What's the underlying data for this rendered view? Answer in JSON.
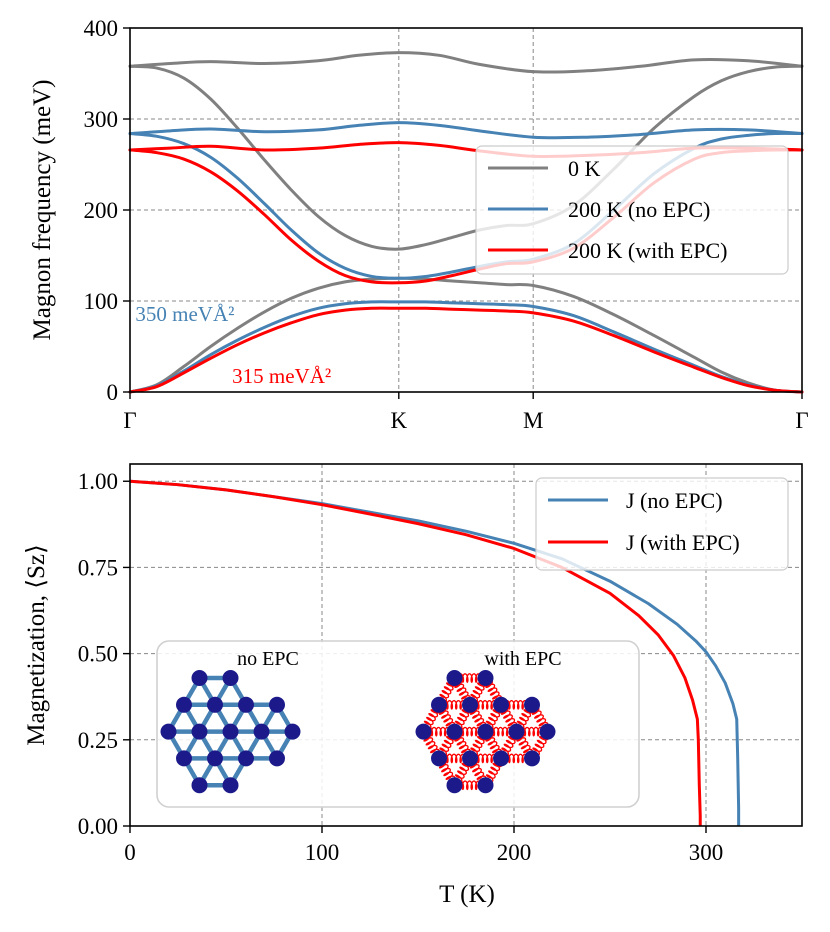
{
  "chart_data": [
    {
      "type": "line",
      "title": "",
      "ylabel": "Magnon frequency (meV)",
      "xlabel": "",
      "ylim": [
        0,
        400
      ],
      "yticks": [
        0,
        100,
        200,
        300,
        400
      ],
      "x_labels": [
        "Γ",
        "K",
        "M",
        "Γ"
      ],
      "x_label_positions": [
        0,
        1,
        1.5,
        2.5
      ],
      "grid": true,
      "legend_position": "center-right",
      "series": [
        {
          "name": "0 K",
          "color": "#808080",
          "bands": [
            {
              "x": [
                0,
                0.1,
                0.2,
                0.3,
                0.4,
                0.5,
                0.6,
                0.7,
                0.8,
                0.9,
                1.0,
                1.1,
                1.2,
                1.3,
                1.4,
                1.5,
                1.65,
                1.8,
                1.95,
                2.1,
                2.2,
                2.3,
                2.4,
                2.5
              ],
              "y": [
                0,
                8,
                28,
                50,
                70,
                88,
                103,
                114,
                121,
                124,
                125,
                124,
                122,
                120,
                118,
                117,
                105,
                85,
                62,
                38,
                22,
                10,
                2,
                0
              ]
            },
            {
              "x": [
                0,
                0.1,
                0.2,
                0.3,
                0.4,
                0.5,
                0.6,
                0.7,
                0.8,
                0.9,
                1.0,
                1.1,
                1.2,
                1.3,
                1.4,
                1.5,
                1.65,
                1.8,
                1.95,
                2.1,
                2.2,
                2.3,
                2.4,
                2.5
              ],
              "y": [
                358,
                356,
                345,
                322,
                290,
                255,
                222,
                193,
                172,
                160,
                157,
                162,
                170,
                178,
                183,
                185,
                205,
                245,
                290,
                325,
                342,
                352,
                357,
                358
              ]
            },
            {
              "x": [
                0,
                0.15,
                0.3,
                0.5,
                0.7,
                0.85,
                1.0,
                1.15,
                1.3,
                1.5,
                1.7,
                1.9,
                2.1,
                2.3,
                2.5
              ],
              "y": [
                358,
                361,
                363,
                361,
                364,
                370,
                373,
                370,
                360,
                352,
                353,
                358,
                365,
                364,
                358
              ]
            }
          ]
        },
        {
          "name": "200 K (no EPC)",
          "color": "#4682b4",
          "bands": [
            {
              "x": [
                0,
                0.1,
                0.2,
                0.3,
                0.4,
                0.5,
                0.6,
                0.7,
                0.8,
                0.9,
                1.0,
                1.1,
                1.2,
                1.3,
                1.4,
                1.5,
                1.65,
                1.8,
                1.95,
                2.1,
                2.2,
                2.3,
                2.4,
                2.5
              ],
              "y": [
                0,
                7,
                23,
                41,
                57,
                71,
                83,
                92,
                97,
                99,
                99,
                99,
                98,
                97,
                96,
                94,
                84,
                66,
                47,
                29,
                17,
                8,
                2,
                0
              ]
            },
            {
              "x": [
                0,
                0.1,
                0.2,
                0.3,
                0.4,
                0.5,
                0.6,
                0.7,
                0.8,
                0.9,
                1.0,
                1.1,
                1.2,
                1.3,
                1.4,
                1.5,
                1.65,
                1.8,
                1.95,
                2.1,
                2.2,
                2.3,
                2.4,
                2.5
              ],
              "y": [
                284,
                281,
                273,
                258,
                235,
                207,
                178,
                153,
                136,
                127,
                125,
                127,
                132,
                138,
                143,
                146,
                163,
                200,
                240,
                268,
                278,
                282,
                284,
                284
              ]
            },
            {
              "x": [
                0,
                0.15,
                0.3,
                0.5,
                0.7,
                0.85,
                1.0,
                1.15,
                1.3,
                1.5,
                1.7,
                1.9,
                2.1,
                2.3,
                2.5
              ],
              "y": [
                284,
                287,
                289,
                286,
                288,
                293,
                296,
                293,
                287,
                280,
                280,
                283,
                288,
                288,
                284
              ]
            }
          ]
        },
        {
          "name": "200 K (with EPC)",
          "color": "#ff0000",
          "bands": [
            {
              "x": [
                0,
                0.1,
                0.2,
                0.3,
                0.4,
                0.5,
                0.6,
                0.7,
                0.8,
                0.9,
                1.0,
                1.1,
                1.2,
                1.3,
                1.4,
                1.5,
                1.65,
                1.8,
                1.95,
                2.1,
                2.2,
                2.3,
                2.4,
                2.5
              ],
              "y": [
                0,
                6,
                21,
                37,
                52,
                65,
                76,
                85,
                90,
                92,
                92,
                92,
                91,
                90,
                89,
                87,
                78,
                62,
                44,
                27,
                16,
                7,
                2,
                0
              ]
            },
            {
              "x": [
                0,
                0.1,
                0.2,
                0.3,
                0.4,
                0.5,
                0.6,
                0.7,
                0.8,
                0.9,
                1.0,
                1.1,
                1.2,
                1.3,
                1.4,
                1.5,
                1.65,
                1.8,
                1.95,
                2.1,
                2.2,
                2.3,
                2.4,
                2.5
              ],
              "y": [
                266,
                263,
                256,
                242,
                221,
                195,
                167,
                144,
                128,
                121,
                120,
                122,
                128,
                135,
                141,
                143,
                158,
                192,
                230,
                256,
                263,
                265,
                266,
                266
              ]
            },
            {
              "x": [
                0,
                0.15,
                0.3,
                0.5,
                0.7,
                0.85,
                1.0,
                1.15,
                1.3,
                1.5,
                1.7,
                1.9,
                2.1,
                2.3,
                2.5
              ],
              "y": [
                266,
                268,
                270,
                266,
                268,
                272,
                274,
                271,
                265,
                259,
                260,
                263,
                268,
                268,
                266
              ]
            }
          ]
        }
      ],
      "annotations": [
        {
          "text": "350 meVÅ²",
          "color": "#4682b4",
          "x": 0.02,
          "y": 78
        },
        {
          "text": "315 meVÅ²",
          "color": "#ff0000",
          "x": 0.38,
          "y": 10
        }
      ]
    },
    {
      "type": "line",
      "title": "",
      "xlabel": "T (K)",
      "ylabel": "Magnetization, ⟨Sz⟩",
      "xlim": [
        0,
        350
      ],
      "ylim": [
        0,
        1.05
      ],
      "xticks": [
        0,
        100,
        200,
        300
      ],
      "yticks": [
        0.0,
        0.25,
        0.5,
        0.75,
        1.0
      ],
      "grid": true,
      "legend_position": "top-right",
      "series": [
        {
          "name": "J (no EPC)",
          "color": "#4682b4",
          "x": [
            0,
            25,
            50,
            75,
            100,
            125,
            150,
            175,
            200,
            225,
            250,
            270,
            285,
            295,
            300,
            305,
            310,
            314,
            316,
            316.5,
            317,
            317
          ],
          "y": [
            1.0,
            0.99,
            0.975,
            0.955,
            0.935,
            0.91,
            0.885,
            0.855,
            0.82,
            0.775,
            0.71,
            0.645,
            0.585,
            0.535,
            0.505,
            0.465,
            0.415,
            0.355,
            0.31,
            0.2,
            0.05,
            0.0
          ]
        },
        {
          "name": "J (with EPC)",
          "color": "#ff0000",
          "x": [
            0,
            25,
            50,
            75,
            100,
            125,
            150,
            175,
            200,
            225,
            250,
            265,
            275,
            283,
            289,
            293,
            295.5,
            296,
            296.5,
            297,
            297
          ],
          "y": [
            1.0,
            0.99,
            0.975,
            0.955,
            0.932,
            0.905,
            0.877,
            0.845,
            0.805,
            0.75,
            0.675,
            0.61,
            0.555,
            0.495,
            0.43,
            0.365,
            0.31,
            0.25,
            0.12,
            0.03,
            0.0
          ]
        }
      ],
      "inset": {
        "labels": [
          "no EPC",
          "with EPC"
        ],
        "bond_color_plain": "#4682b4",
        "bond_color_spring": "#ff0000",
        "atom_color": "#1c1a8a"
      }
    }
  ]
}
